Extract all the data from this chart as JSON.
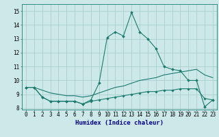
{
  "xlabel": "Humidex (Indice chaleur)",
  "background_color": "#cce8e8",
  "grid_color": "#aacfcf",
  "line_color": "#1a7a6e",
  "xlim": [
    -0.5,
    23.5
  ],
  "ylim": [
    7.9,
    15.5
  ],
  "yticks": [
    8,
    9,
    10,
    11,
    12,
    13,
    14,
    15
  ],
  "xticks": [
    0,
    1,
    2,
    3,
    4,
    5,
    6,
    7,
    8,
    9,
    10,
    11,
    12,
    13,
    14,
    15,
    16,
    17,
    18,
    19,
    20,
    21,
    22,
    23
  ],
  "line1_x": [
    0,
    1,
    2,
    3,
    4,
    5,
    6,
    7,
    8,
    9,
    10,
    11,
    12,
    13,
    14,
    15,
    16,
    17,
    18,
    19,
    20,
    21,
    22,
    23
  ],
  "line1_y": [
    9.5,
    9.5,
    8.8,
    8.5,
    8.5,
    8.5,
    8.5,
    8.3,
    8.6,
    9.8,
    13.1,
    13.5,
    13.2,
    14.9,
    13.5,
    13.0,
    12.3,
    11.0,
    10.8,
    10.7,
    10.0,
    10.0,
    8.1,
    8.6
  ],
  "line2_x": [
    0,
    1,
    2,
    3,
    4,
    5,
    6,
    7,
    8,
    9,
    10,
    11,
    12,
    13,
    14,
    15,
    16,
    17,
    18,
    19,
    20,
    21,
    22,
    23
  ],
  "line2_y": [
    9.5,
    9.5,
    9.3,
    9.1,
    9.0,
    8.9,
    8.9,
    8.8,
    8.9,
    9.1,
    9.3,
    9.5,
    9.6,
    9.8,
    10.0,
    10.1,
    10.2,
    10.4,
    10.5,
    10.6,
    10.7,
    10.8,
    10.4,
    10.2
  ],
  "line3_x": [
    0,
    1,
    2,
    3,
    4,
    5,
    6,
    7,
    8,
    9,
    10,
    11,
    12,
    13,
    14,
    15,
    16,
    17,
    18,
    19,
    20,
    21,
    22,
    23
  ],
  "line3_y": [
    9.5,
    9.5,
    8.8,
    8.5,
    8.5,
    8.5,
    8.5,
    8.3,
    8.5,
    8.6,
    8.7,
    8.8,
    8.9,
    9.0,
    9.1,
    9.2,
    9.2,
    9.3,
    9.3,
    9.4,
    9.4,
    9.4,
    8.7,
    8.6
  ],
  "xlabel_color": "#00008b",
  "tick_labelsize": 5.5,
  "xlabel_fontsize": 6.5
}
